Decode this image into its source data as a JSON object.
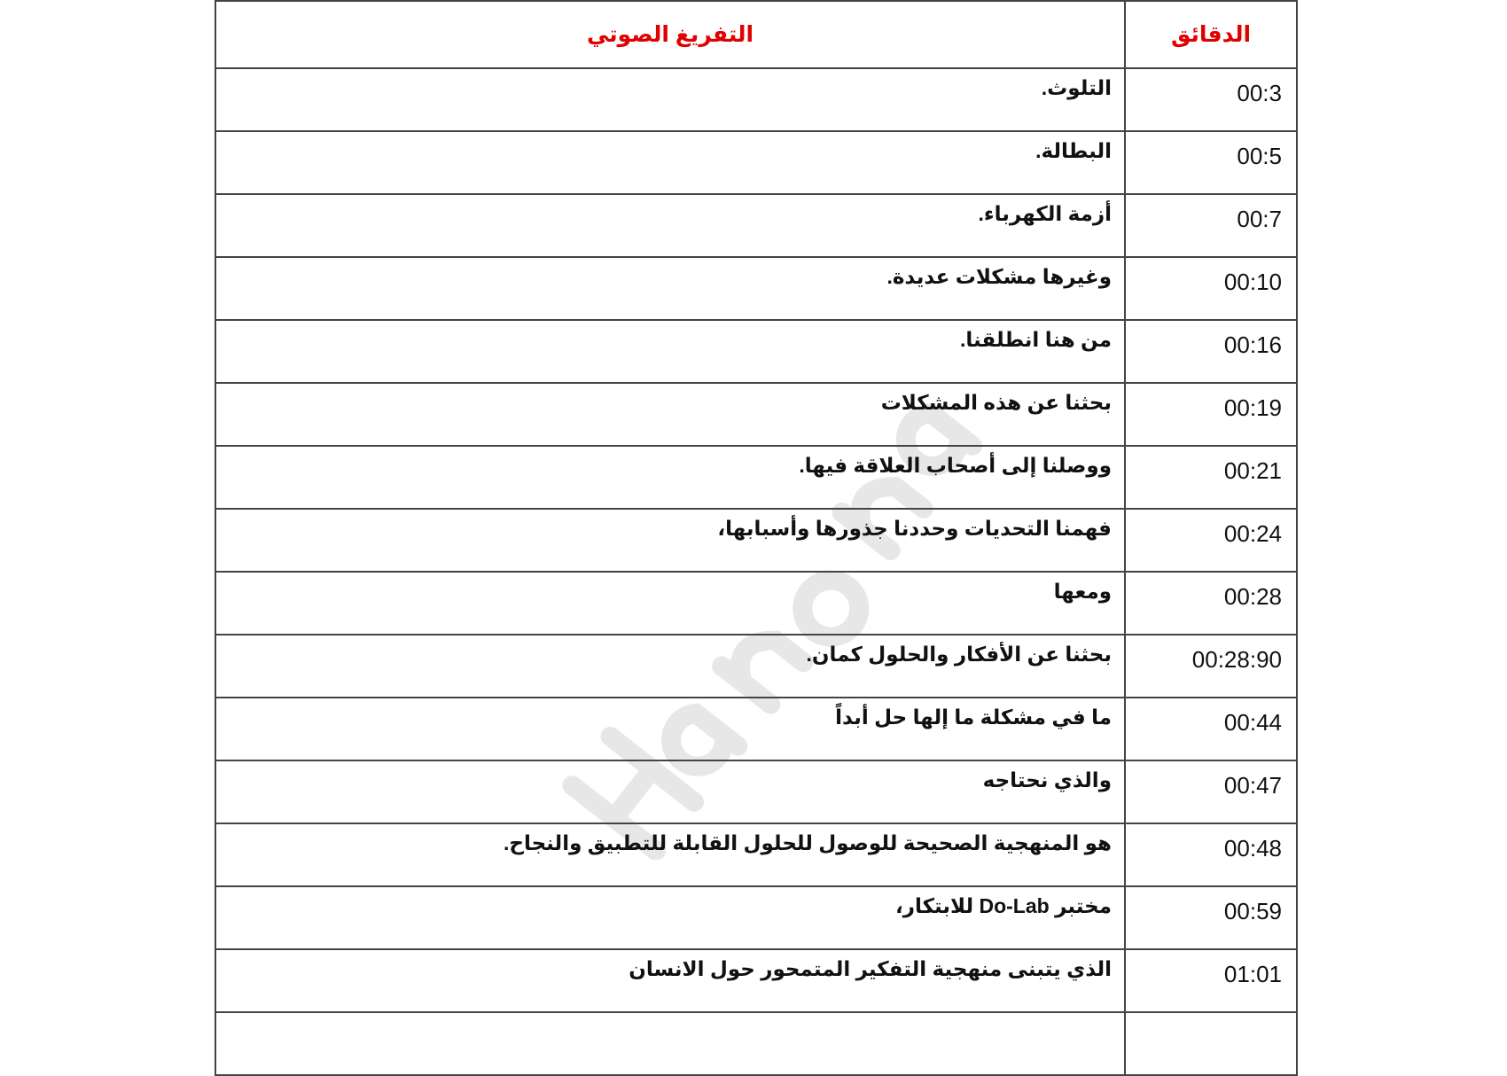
{
  "table": {
    "headers": {
      "minutes": "الدقائق",
      "transcript": "التفريغ الصوتي"
    },
    "rows": [
      {
        "time": "00:3",
        "text": "التلوث."
      },
      {
        "time": "00:5",
        "text": "البطالة."
      },
      {
        "time": "00:7",
        "text": "أزمة الكهرباء."
      },
      {
        "time": "00:10",
        "text": "وغيرها مشكلات عديدة."
      },
      {
        "time": "00:16",
        "text": "من هنا انطلقنا."
      },
      {
        "time": "00:19",
        "text": "بحثنا عن هذه المشكلات"
      },
      {
        "time": "00:21",
        "text": "ووصلنا إلى أصحاب العلاقة فيها."
      },
      {
        "time": "00:24",
        "text": "فهمنا التحديات وحددنا جذورها وأسبابها،"
      },
      {
        "time": "00:28",
        "text": "ومعها"
      },
      {
        "time": "00:28:90",
        "text": "بحثنا عن الأفكار والحلول كمان."
      },
      {
        "time": "00:44",
        "text": "ما في مشكلة ما إلها حل أبداً"
      },
      {
        "time": "00:47",
        "text": "والذي نحتاجه"
      },
      {
        "time": "00:48",
        "text": "هو المنهجية الصحيحة للوصول للحلول القابلة للتطبيق والنجاح."
      },
      {
        "time": "00:59",
        "text": "مختبر Do-Lab للابتكار،"
      },
      {
        "time": "01:01",
        "text": "الذي يتبنى منهجية التفكير المتمحور حول الانسان"
      },
      {
        "time": "",
        "text": ""
      }
    ]
  },
  "watermark": "Hanona",
  "colors": {
    "header_text": "#e00000",
    "border": "#444444",
    "watermark": "#d8d8d8"
  }
}
